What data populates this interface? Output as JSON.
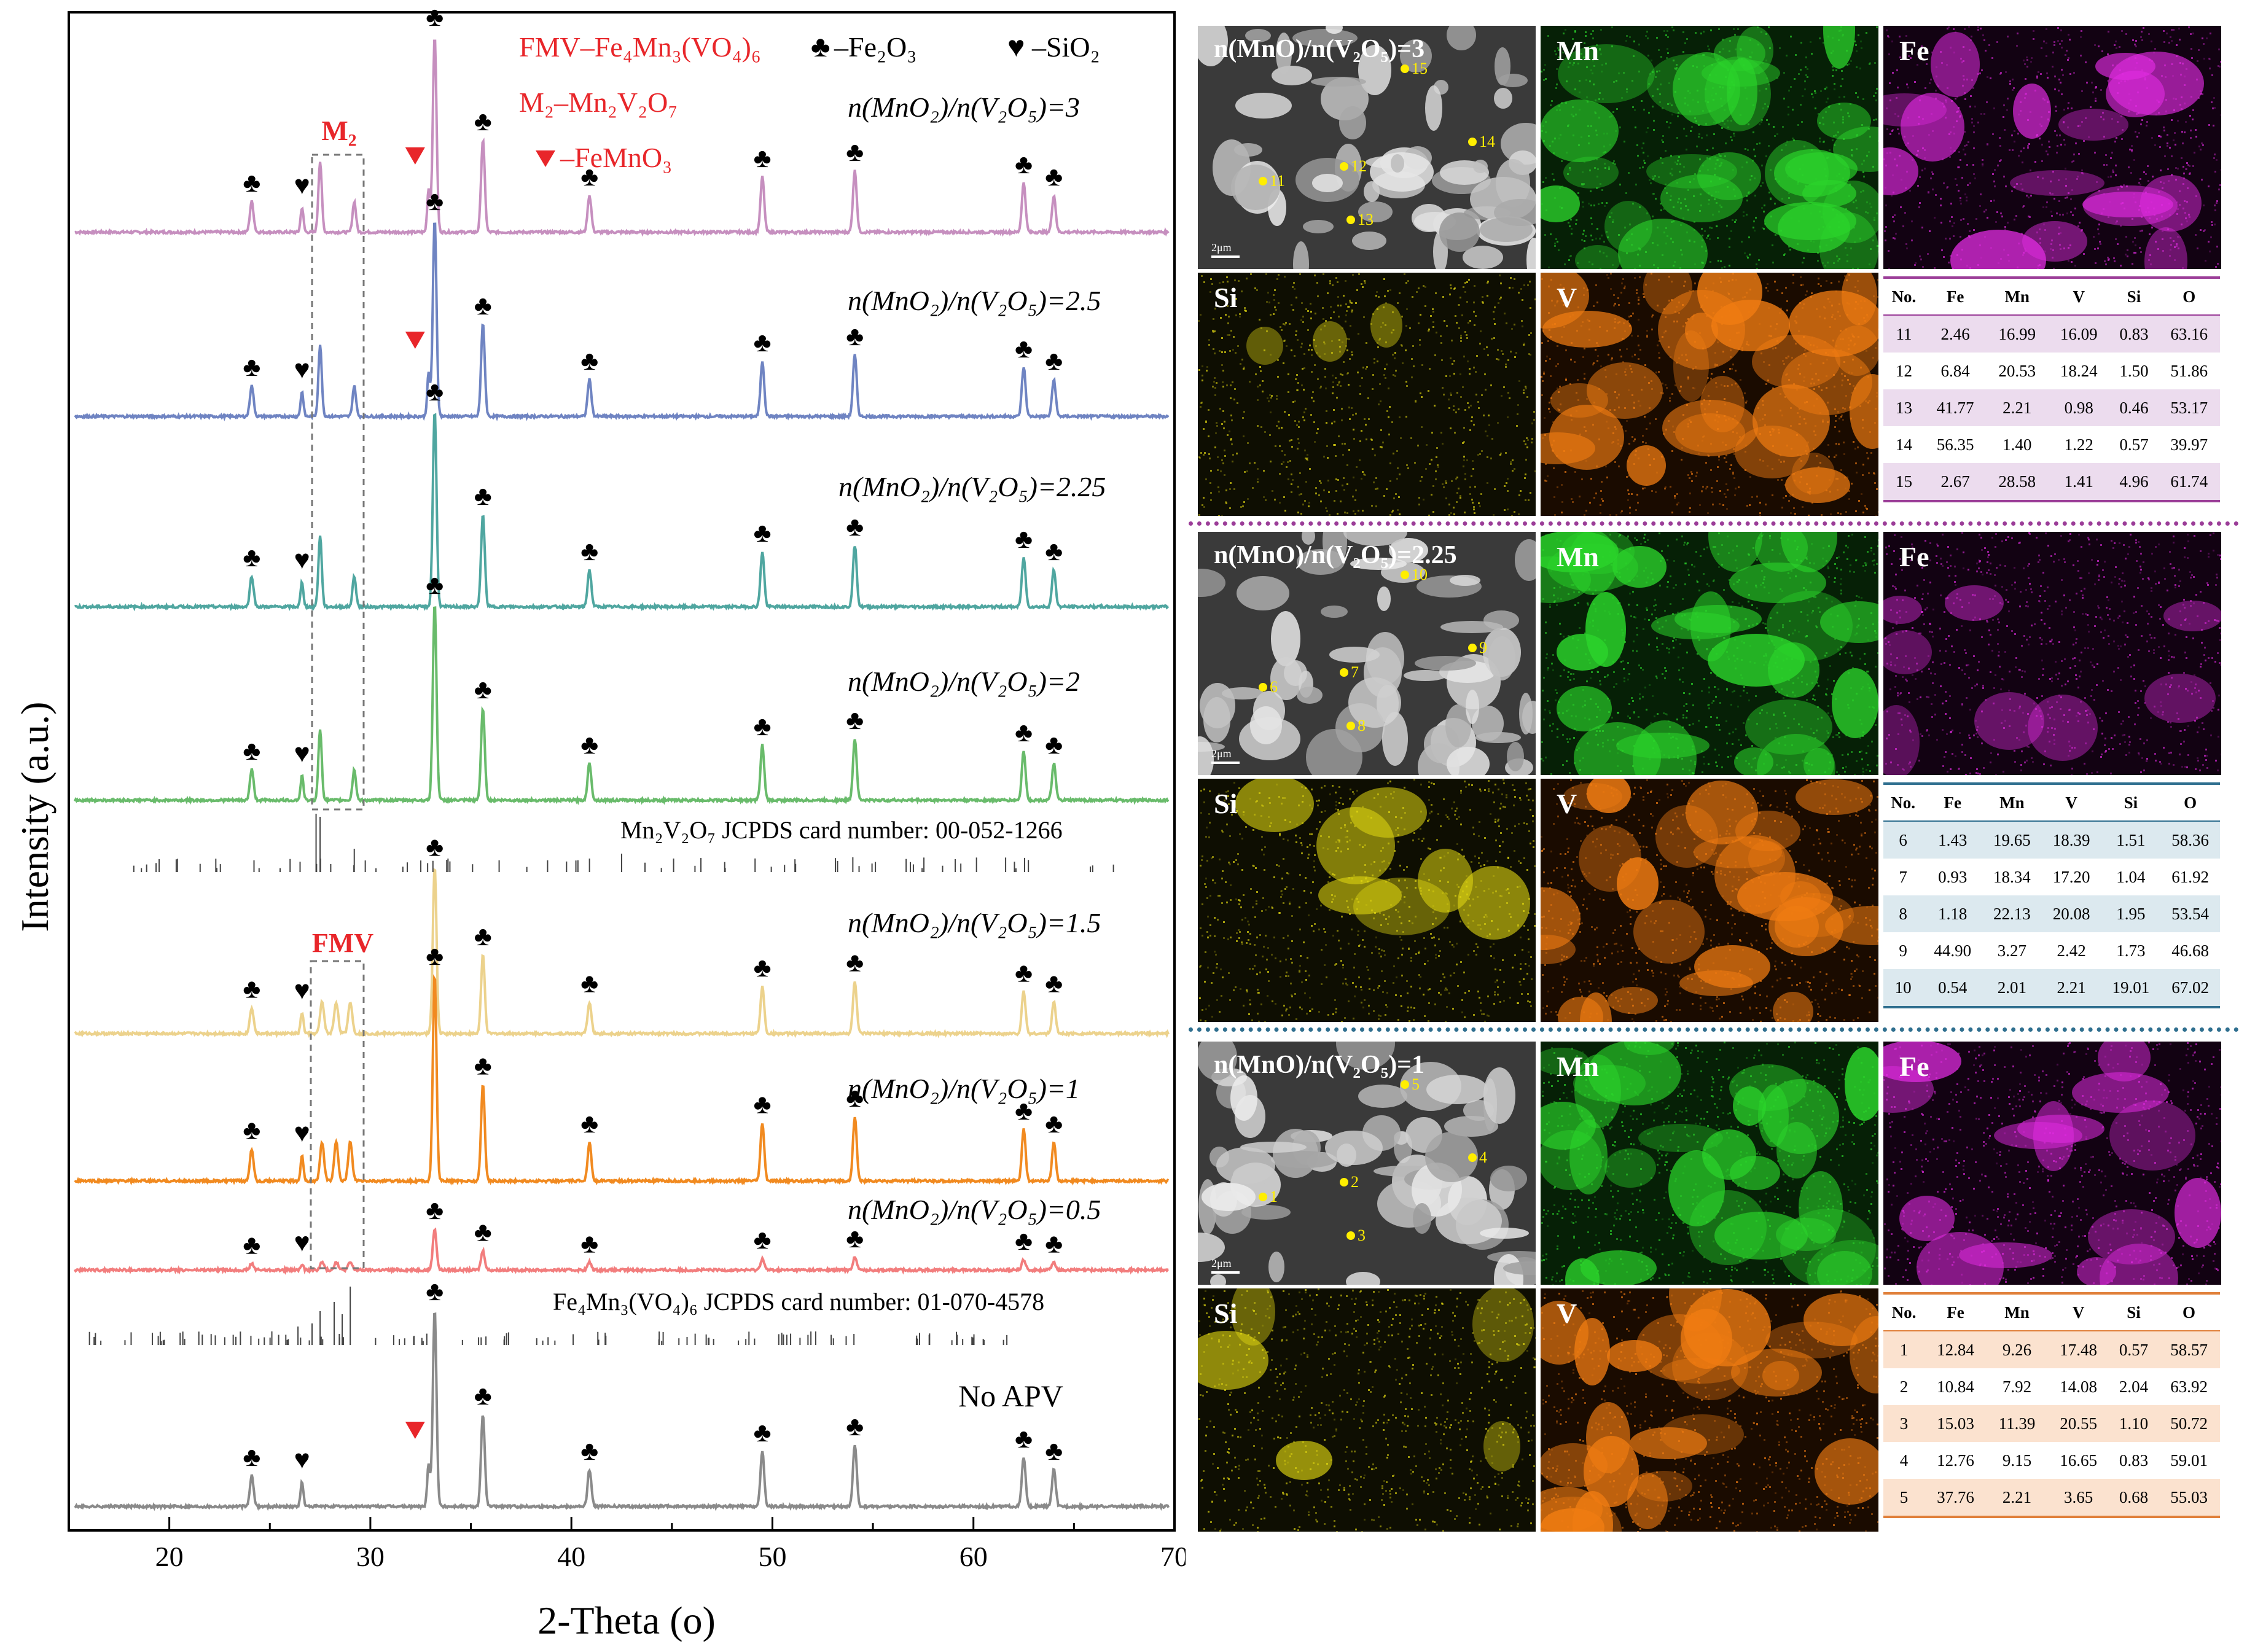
{
  "chart_data": {
    "type": "line",
    "ylabel": "Intensity (a.u.)",
    "xlabel": "2-Theta (o)",
    "xlim": [
      15,
      70
    ],
    "xticks": [
      20,
      30,
      40,
      50,
      60,
      70
    ],
    "legend": {
      "fmv": "FMV–Fe₄Mn₃(VO₄)₆",
      "m2": "M₂–Mn₂V₂O₇",
      "femno3": "–FeMnO₃",
      "fe2o3": "–Fe₂O₃",
      "sio2": "–SiO₂"
    },
    "box_labels": {
      "m2": "M₂",
      "fmv": "FMV"
    },
    "peaks": {
      "fe2o3": [
        24.1,
        33.2,
        35.6,
        40.9,
        49.5,
        54.1,
        62.5,
        64.0
      ],
      "sio2": [
        26.6
      ],
      "mn2v2o7_strong": [
        27.5,
        29.2
      ],
      "fmv_strong": [
        27.6,
        28.3,
        29.0
      ],
      "femno3": [
        32.9
      ]
    },
    "series": [
      {
        "name": "n(MnO₂)/n(V₂O₅)=3",
        "color": "#c68fbf",
        "phase": "m2",
        "femno3": true,
        "intensity": 1.0
      },
      {
        "name": "n(MnO₂)/n(V₂O₅)=2.5",
        "color": "#6f84c2",
        "phase": "m2",
        "femno3": true,
        "intensity": 1.0
      },
      {
        "name": "n(MnO₂)/n(V₂O₅)=2.25",
        "color": "#4fa6a0",
        "phase": "m2",
        "femno3": false,
        "intensity": 1.0
      },
      {
        "name": "n(MnO₂)/n(V₂O₅)=2",
        "color": "#69bb6b",
        "phase": "m2",
        "femno3": false,
        "intensity": 1.0
      },
      {
        "name": "n(MnO₂)/n(V₂O₅)=1.5",
        "color": "#ecd28c",
        "phase": "fmv",
        "femno3": false,
        "intensity": 0.9
      },
      {
        "name": "n(MnO₂)/n(V₂O₅)=1",
        "color": "#f18a20",
        "phase": "fmv",
        "femno3": false,
        "intensity": 1.0
      },
      {
        "name": "n(MnO₂)/n(V₂O₅)=0.5",
        "color": "#f27d7d",
        "phase": "fmv",
        "femno3": false,
        "intensity": 0.5
      },
      {
        "name": "No APV",
        "color": "#8a8a8a",
        "phase": "none",
        "femno3": true,
        "intensity": 1.0
      }
    ],
    "references": [
      {
        "name": "Mn₂V₂O₇",
        "card": "JCPDS card number: 00-052-1266"
      },
      {
        "name": "Fe₄Mn₃(VO₄)₆",
        "card": "JCPDS card number: 01-070-4578"
      }
    ]
  },
  "eds": {
    "element_labels": {
      "mn": "Mn",
      "fe": "Fe",
      "si": "Si",
      "v": "V"
    },
    "scale": "2μm",
    "groups": [
      {
        "sem_label": "n(MnO)/n(V₂O₅)=3",
        "points": [
          "11",
          "12",
          "13",
          "14",
          "15"
        ],
        "fe_level": 0.85,
        "si_level": 0.2,
        "table": {
          "headers": [
            "No.",
            "Fe",
            "Mn",
            "V",
            "Si",
            "O"
          ],
          "rows": [
            [
              "11",
              "2.46",
              "16.99",
              "16.09",
              "0.83",
              "63.16"
            ],
            [
              "12",
              "6.84",
              "20.53",
              "18.24",
              "1.50",
              "51.86"
            ],
            [
              "13",
              "41.77",
              "2.21",
              "0.98",
              "0.46",
              "53.17"
            ],
            [
              "14",
              "56.35",
              "1.40",
              "1.22",
              "0.57",
              "39.97"
            ],
            [
              "15",
              "2.67",
              "28.58",
              "1.41",
              "4.96",
              "61.74"
            ]
          ],
          "accent": "#9b3d98",
          "stripe": "#ecdcee"
        }
      },
      {
        "sem_label": "n(MnO)/n(V₂O₅)=2.25",
        "points": [
          "6",
          "7",
          "8",
          "9",
          "10"
        ],
        "fe_level": 0.25,
        "si_level": 0.9,
        "table": {
          "headers": [
            "No.",
            "Fe",
            "Mn",
            "V",
            "Si",
            "O"
          ],
          "rows": [
            [
              "6",
              "1.43",
              "19.65",
              "18.39",
              "1.51",
              "58.36"
            ],
            [
              "7",
              "0.93",
              "18.34",
              "17.20",
              "1.04",
              "61.92"
            ],
            [
              "8",
              "1.18",
              "22.13",
              "20.08",
              "1.95",
              "53.54"
            ],
            [
              "9",
              "44.90",
              "3.27",
              "2.42",
              "1.73",
              "46.68"
            ],
            [
              "10",
              "0.54",
              "2.01",
              "2.21",
              "19.01",
              "67.02"
            ]
          ],
          "accent": "#2f6f8f",
          "stripe": "#dce9ef"
        }
      },
      {
        "sem_label": "n(MnO)/n(V₂O₅)=1",
        "points": [
          "1",
          "2",
          "3",
          "4",
          "5"
        ],
        "fe_level": 0.8,
        "si_level": 0.6,
        "table": {
          "headers": [
            "No.",
            "Fe",
            "Mn",
            "V",
            "Si",
            "O"
          ],
          "rows": [
            [
              "1",
              "12.84",
              "9.26",
              "17.48",
              "0.57",
              "58.57"
            ],
            [
              "2",
              "10.84",
              "7.92",
              "14.08",
              "2.04",
              "63.92"
            ],
            [
              "3",
              "15.03",
              "11.39",
              "20.55",
              "1.10",
              "50.72"
            ],
            [
              "4",
              "12.76",
              "9.15",
              "16.65",
              "0.83",
              "59.01"
            ],
            [
              "5",
              "37.76",
              "2.21",
              "3.65",
              "0.68",
              "55.03"
            ]
          ],
          "accent": "#e0803a",
          "stripe": "#fbe2cf"
        }
      }
    ]
  }
}
